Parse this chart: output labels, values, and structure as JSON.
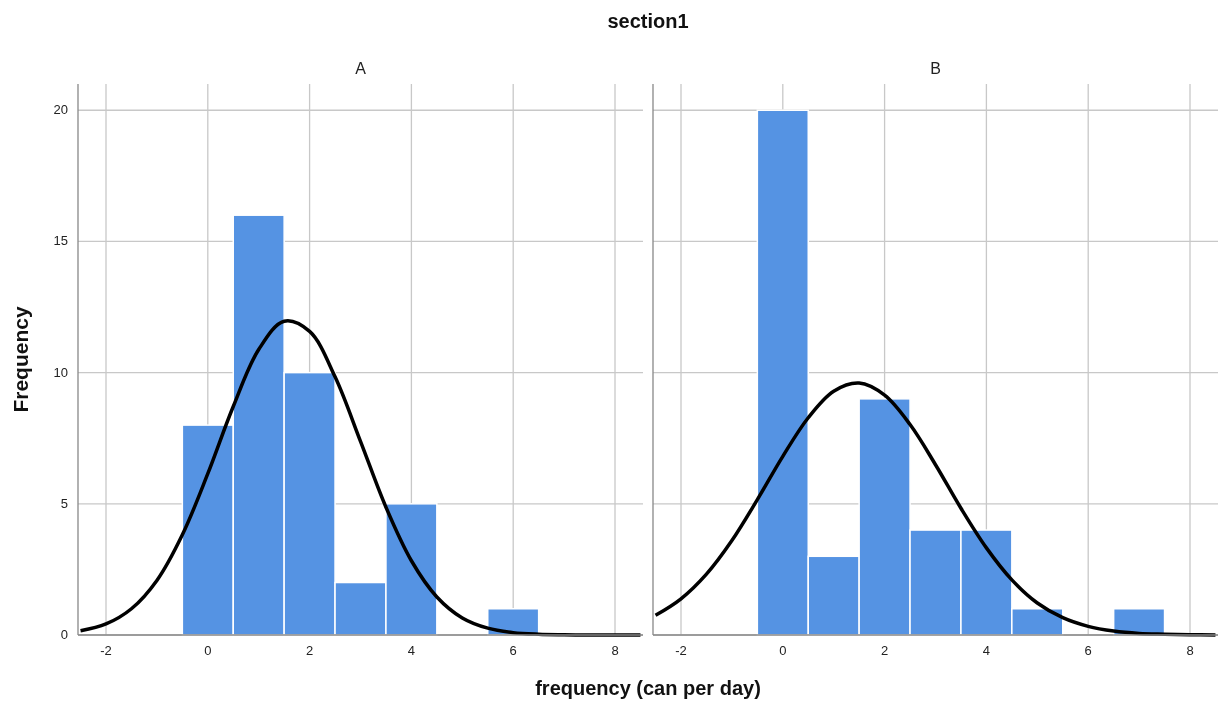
{
  "chart_data": [
    {
      "type": "histogram",
      "title": "A",
      "ylabel": "Frequency",
      "xlabel": "frequency (can per day)",
      "annotations": [
        "section1"
      ],
      "bins": [
        -0.5,
        0.5,
        1.5,
        2.5,
        3.5,
        4.5,
        5.5,
        6.5
      ],
      "values": [
        8,
        16,
        10,
        2,
        5,
        0,
        1
      ],
      "color": "#5593e3",
      "xlim": [
        -2.55,
        8.55
      ],
      "ylim": [
        0,
        21
      ],
      "xticks": [
        -2,
        0,
        2,
        4,
        6,
        8
      ],
      "yticks": [
        0,
        5,
        10,
        15,
        20
      ],
      "grid": true,
      "series": [
        {
          "type": "line",
          "color": "#000000",
          "marker": "none",
          "line_style": "solid",
          "x": [
            -2.5,
            -2,
            -1.5,
            -1,
            -0.5,
            0,
            0.5,
            1,
            1.5,
            2,
            2.5,
            3,
            3.5,
            4,
            4.5,
            5,
            5.5,
            6,
            6.5,
            7,
            7.5,
            8,
            8.5
          ],
          "values": [
            0.16,
            0.42,
            1.0,
            2.08,
            3.82,
            6.15,
            8.71,
            10.88,
            11.96,
            11.57,
            9.84,
            7.38,
            4.87,
            2.83,
            1.45,
            0.65,
            0.26,
            0.09,
            0.03,
            0.01,
            0,
            0,
            0
          ]
        }
      ]
    },
    {
      "type": "histogram",
      "title": "B",
      "bins": [
        -0.5,
        0.5,
        1.5,
        2.5,
        3.5,
        4.5,
        5.5,
        6.5,
        7.5
      ],
      "values": [
        20,
        3,
        9,
        4,
        4,
        1,
        0,
        1
      ],
      "color": "#5593e3",
      "xlim": [
        -2.55,
        8.55
      ],
      "ylim": [
        0,
        21
      ],
      "xticks": [
        -2,
        0,
        2,
        4,
        6,
        8
      ],
      "yticks": [
        0,
        5,
        10,
        15,
        20
      ],
      "grid": true,
      "tick_labels": "x",
      "series": [
        {
          "type": "line",
          "color": "#000000",
          "marker": "none",
          "line_style": "solid",
          "x": [
            -2.5,
            -2,
            -1.5,
            -1,
            -0.5,
            0,
            0.5,
            1,
            1.5,
            2,
            2.5,
            3,
            3.5,
            4,
            4.5,
            5,
            5.5,
            6,
            6.5,
            7,
            7.5,
            8,
            8.5
          ],
          "values": [
            0.75,
            1.38,
            2.32,
            3.6,
            5.16,
            6.81,
            8.28,
            9.29,
            9.6,
            9.14,
            8.02,
            6.49,
            4.83,
            3.32,
            2.1,
            1.22,
            0.66,
            0.33,
            0.15,
            0.06,
            0.03,
            0.01,
            0
          ]
        }
      ]
    }
  ]
}
